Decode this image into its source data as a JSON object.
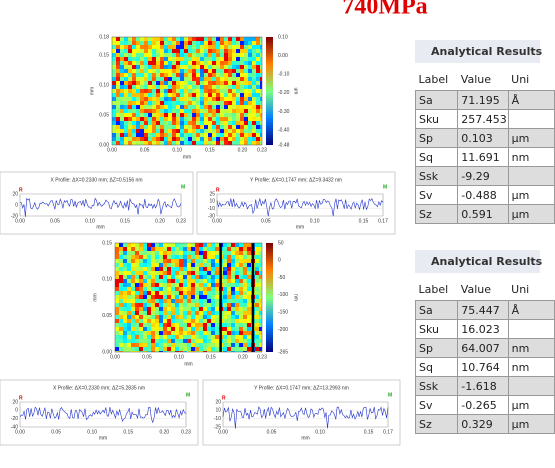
{
  "title": "740MPa",
  "maps": [
    {
      "yticks": [
        "0.18",
        "0.15",
        "0.10",
        "0.05",
        "0.00"
      ],
      "xticks": [
        "0.00",
        "0.05",
        "0.10",
        "0.15",
        "0.20",
        "0.23"
      ],
      "xlabel": "mm",
      "ylabel": "mm",
      "cbar": [
        "0.10",
        "0.00",
        "-0.10",
        "-0.20",
        "-0.30",
        "-0.40",
        "-0.48"
      ],
      "unit": "um"
    },
    {
      "yticks": [
        "0.15",
        "0.10",
        "0.05",
        "0.00"
      ],
      "xticks": [
        "0.00",
        "0.05",
        "0.10",
        "0.15",
        "0.20",
        "0.23"
      ],
      "xlabel": "mm",
      "ylabel": "mm",
      "cbar": [
        "50",
        "0",
        "-50",
        "-100",
        "-150",
        "-200",
        "-265"
      ],
      "unit": "nm"
    }
  ],
  "profiles": [
    {
      "title": "X Profile: ΔX=0.2330 mm; ΔZ=0.5156 nm",
      "m": "M",
      "r": "R",
      "yticks": [
        "20",
        "0",
        "-20"
      ],
      "xticks": [
        "0.00",
        "0.05",
        "0.10",
        "0.15",
        "0.20",
        "0.23"
      ],
      "xlabel": "mm"
    },
    {
      "title": "Y Profile: ΔX=0.1747 mm; ΔZ=9.3432 nm",
      "m": "M",
      "r": "R",
      "yticks": [
        "25",
        "10",
        "-10",
        "-30"
      ],
      "xticks": [
        "0.00",
        "0.05",
        "0.10",
        "0.15",
        "0.17"
      ],
      "xlabel": "mm"
    },
    {
      "title": "X Profile: ΔX=0.2330 mm; ΔZ=5.2835 nm",
      "m": "M",
      "r": "R",
      "yticks": [
        "20",
        "0",
        "-20",
        "-40"
      ],
      "xticks": [
        "0.00",
        "0.05",
        "0.10",
        "0.15",
        "0.20",
        "0.23"
      ],
      "xlabel": "mm"
    },
    {
      "title": "Y Profile: ΔX=0.1747 mm; ΔZ=13.2993 nm",
      "m": "M",
      "r": "R",
      "yticks": [
        "20",
        "10",
        "-10",
        "-25"
      ],
      "xticks": [
        "0.00",
        "0.05",
        "0.10",
        "0.15",
        "0.17"
      ],
      "xlabel": "mm"
    }
  ],
  "tables": [
    {
      "title": "Analytical Results",
      "columns": [
        "Label",
        "Value",
        "Uni"
      ],
      "rows": [
        [
          "Sa",
          "71.195",
          "Å"
        ],
        [
          "Sku",
          "257.453"
        ],
        [
          "Sp",
          "0.103",
          "µm"
        ],
        [
          "Sq",
          "11.691",
          "nm"
        ],
        [
          "Ssk",
          "-9.29"
        ],
        [
          "Sv",
          "-0.488",
          "µm"
        ],
        [
          "Sz",
          "0.591",
          "µm"
        ]
      ]
    },
    {
      "title": "Analytical Results",
      "columns": [
        "Label",
        "Value",
        "Uni"
      ],
      "rows": [
        [
          "Sa",
          "75.447",
          "Å"
        ],
        [
          "Sku",
          "16.023"
        ],
        [
          "Sp",
          "64.007",
          "nm"
        ],
        [
          "Sq",
          "10.764",
          "nm"
        ],
        [
          "Ssk",
          "-1.618"
        ],
        [
          "Sv",
          "-0.265",
          "µm"
        ],
        [
          "Sz",
          "0.329",
          "µm"
        ]
      ]
    }
  ]
}
